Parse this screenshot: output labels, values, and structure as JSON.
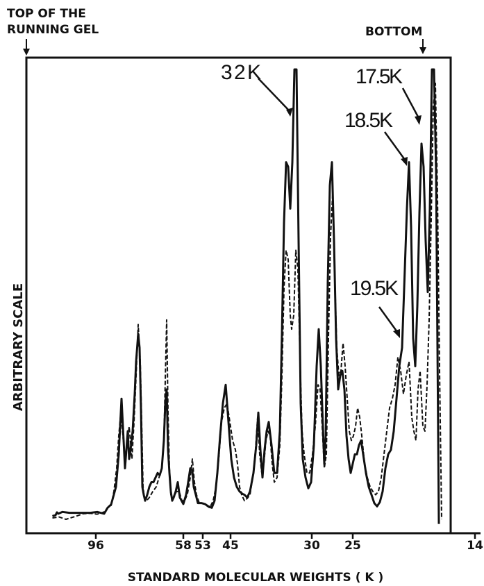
{
  "chart_data": {
    "type": "line",
    "top_label_line1": "TOP OF THE",
    "top_label_line2": "RUNNING GEL",
    "bottom_label": "BOTTOM",
    "xlabel": "STANDARD MOLECULAR WEIGHTS ( K )",
    "ylabel": "ARBITRARY SCALE",
    "x_ticks": [
      "96",
      "58",
      "53",
      "45",
      "30",
      "25",
      "14"
    ],
    "x_scale": "migration distance; ticks at standard molecular weights (K)",
    "grid": false,
    "legend": "none",
    "peak_labels": [
      "32K",
      "17.5K",
      "18.5K",
      "19.5K"
    ],
    "series": [
      {
        "style": "solid",
        "profile": [
          [
            75.5,
            3.7
          ],
          [
            80,
            3.9
          ],
          [
            82,
            4.5
          ],
          [
            84,
            4.2
          ],
          [
            90,
            4.6
          ],
          [
            100,
            4.4
          ],
          [
            130,
            4.4
          ],
          [
            140,
            4.6
          ],
          [
            150,
            4.2
          ],
          [
            155,
            5.5
          ],
          [
            160,
            6.2
          ],
          [
            163,
            7.8
          ],
          [
            167,
            10
          ],
          [
            171,
            17
          ],
          [
            175,
            29
          ],
          [
            178,
            20
          ],
          [
            180,
            14
          ],
          [
            182,
            18
          ],
          [
            184,
            22
          ],
          [
            186,
            16
          ],
          [
            188,
            18
          ],
          [
            191,
            22
          ],
          [
            194,
            30
          ],
          [
            196,
            37
          ],
          [
            199,
            43
          ],
          [
            201,
            40
          ],
          [
            203,
            27
          ],
          [
            205,
            10
          ],
          [
            207,
            8.3
          ],
          [
            209,
            7.0
          ],
          [
            212,
            8.3
          ],
          [
            215,
            10
          ],
          [
            218,
            11
          ],
          [
            221,
            11
          ],
          [
            224,
            12
          ],
          [
            227,
            13
          ],
          [
            230,
            12.5
          ],
          [
            233,
            14
          ],
          [
            236,
            20
          ],
          [
            238,
            28
          ],
          [
            240,
            31
          ],
          [
            242,
            18
          ],
          [
            244,
            13
          ],
          [
            246,
            9
          ],
          [
            248,
            7
          ],
          [
            250,
            7.7
          ],
          [
            253,
            9
          ],
          [
            256,
            11
          ],
          [
            259,
            7.7
          ],
          [
            264,
            6.3
          ],
          [
            268,
            8.3
          ],
          [
            271,
            11
          ],
          [
            274,
            14
          ],
          [
            277,
            13.5
          ],
          [
            279,
            10
          ],
          [
            282,
            8.3
          ],
          [
            285,
            6.5
          ],
          [
            290,
            6.5
          ],
          [
            295,
            6.3
          ],
          [
            300,
            5.8
          ],
          [
            305,
            5.5
          ],
          [
            309,
            7.0
          ],
          [
            313,
            13
          ],
          [
            317,
            21
          ],
          [
            321,
            28
          ],
          [
            325,
            32
          ],
          [
            329,
            24
          ],
          [
            333,
            16
          ],
          [
            337,
            12
          ],
          [
            341,
            10
          ],
          [
            345,
            9
          ],
          [
            349,
            8.5
          ],
          [
            352,
            8.3
          ],
          [
            356,
            7.7
          ],
          [
            360,
            9
          ],
          [
            365,
            13
          ],
          [
            369,
            19
          ],
          [
            372,
            26
          ],
          [
            375,
            18
          ],
          [
            378,
            12
          ],
          [
            381,
            18
          ],
          [
            384,
            22
          ],
          [
            387,
            24
          ],
          [
            391,
            19
          ],
          [
            395,
            13
          ],
          [
            399,
            13
          ],
          [
            403,
            22
          ],
          [
            406,
            43
          ],
          [
            409,
            67
          ],
          [
            412,
            80
          ],
          [
            415,
            79
          ],
          [
            418,
            70
          ],
          [
            421,
            80
          ],
          [
            424,
            100
          ],
          [
            427,
            100
          ],
          [
            430,
            63
          ],
          [
            433,
            28
          ],
          [
            436,
            16
          ],
          [
            440,
            12
          ],
          [
            444,
            9.7
          ],
          [
            448,
            11
          ],
          [
            452,
            19
          ],
          [
            456,
            36
          ],
          [
            459,
            44
          ],
          [
            462,
            36
          ],
          [
            465,
            23
          ],
          [
            467,
            15
          ],
          [
            469,
            21
          ],
          [
            472,
            54
          ],
          [
            475,
            75
          ],
          [
            478,
            80
          ],
          [
            481,
            63
          ],
          [
            484,
            42
          ],
          [
            487,
            31
          ],
          [
            490,
            34
          ],
          [
            493,
            35
          ],
          [
            496,
            31
          ],
          [
            499,
            21
          ],
          [
            502,
            16
          ],
          [
            505,
            13
          ],
          [
            508,
            15
          ],
          [
            511,
            17
          ],
          [
            514,
            17
          ],
          [
            517,
            19
          ],
          [
            520,
            20
          ],
          [
            523,
            17
          ],
          [
            527,
            13
          ],
          [
            531,
            10
          ],
          [
            535,
            8.3
          ],
          [
            539,
            6.5
          ],
          [
            543,
            5.8
          ],
          [
            547,
            6.7
          ],
          [
            551,
            9
          ],
          [
            555,
            14
          ],
          [
            559,
            17
          ],
          [
            563,
            18
          ],
          [
            567,
            22
          ],
          [
            571,
            29
          ],
          [
            575,
            36
          ],
          [
            579,
            40
          ],
          [
            583,
            57
          ],
          [
            586,
            70
          ],
          [
            589,
            80
          ],
          [
            592,
            66
          ],
          [
            595,
            42
          ],
          [
            598,
            36
          ],
          [
            601,
            49
          ],
          [
            604,
            69
          ],
          [
            607,
            84
          ],
          [
            610,
            79
          ],
          [
            613,
            63
          ],
          [
            616,
            52
          ],
          [
            619,
            70
          ],
          [
            622,
            100
          ],
          [
            625,
            100
          ],
          [
            628,
            78
          ],
          [
            630,
            40
          ],
          [
            632,
            2
          ]
        ]
      },
      {
        "style": "dashed",
        "profile": [
          [
            75.5,
            3.3
          ],
          [
            85,
            3.5
          ],
          [
            95,
            3.0
          ],
          [
            110,
            3.7
          ],
          [
            120,
            4.2
          ],
          [
            130,
            4.3
          ],
          [
            140,
            4.1
          ],
          [
            150,
            4.6
          ],
          [
            155,
            5.5
          ],
          [
            160,
            6.0
          ],
          [
            164,
            9
          ],
          [
            168,
            14
          ],
          [
            171,
            21
          ],
          [
            174,
            26
          ],
          [
            177,
            21
          ],
          [
            180,
            16
          ],
          [
            183,
            19
          ],
          [
            186,
            23
          ],
          [
            190,
            16
          ],
          [
            193,
            24
          ],
          [
            196,
            34
          ],
          [
            199,
            45
          ],
          [
            202,
            37
          ],
          [
            204,
            24
          ],
          [
            206,
            10
          ],
          [
            208,
            7.5
          ],
          [
            211,
            7
          ],
          [
            215,
            7.7
          ],
          [
            220,
            9
          ],
          [
            225,
            10
          ],
          [
            229,
            12
          ],
          [
            233,
            14
          ],
          [
            236,
            20
          ],
          [
            238,
            33
          ],
          [
            240,
            46
          ],
          [
            242,
            26
          ],
          [
            244,
            14
          ],
          [
            246,
            8.3
          ],
          [
            250,
            7.5
          ],
          [
            254,
            9
          ],
          [
            258,
            9
          ],
          [
            262,
            7
          ],
          [
            266,
            7
          ],
          [
            270,
            8.5
          ],
          [
            274,
            12
          ],
          [
            277,
            16
          ],
          [
            280,
            11
          ],
          [
            283,
            8.3
          ],
          [
            287,
            6.5
          ],
          [
            292,
            6.5
          ],
          [
            297,
            6
          ],
          [
            302,
            5.5
          ],
          [
            307,
            7
          ],
          [
            311,
            10
          ],
          [
            315,
            16
          ],
          [
            319,
            24
          ],
          [
            323,
            27
          ],
          [
            327,
            28
          ],
          [
            331,
            24
          ],
          [
            335,
            20
          ],
          [
            339,
            18
          ],
          [
            342,
            15
          ],
          [
            345,
            10
          ],
          [
            348,
            8.3
          ],
          [
            352,
            7
          ],
          [
            356,
            7.5
          ],
          [
            360,
            8.3
          ],
          [
            364,
            12
          ],
          [
            368,
            18
          ],
          [
            371,
            25
          ],
          [
            374,
            17
          ],
          [
            377,
            13
          ],
          [
            380,
            15
          ],
          [
            383,
            20
          ],
          [
            386,
            22
          ],
          [
            389,
            21
          ],
          [
            392,
            15
          ],
          [
            395,
            11
          ],
          [
            399,
            12
          ],
          [
            403,
            19
          ],
          [
            406,
            34
          ],
          [
            409,
            53
          ],
          [
            412,
            61
          ],
          [
            415,
            59
          ],
          [
            418,
            47
          ],
          [
            420,
            44
          ],
          [
            423,
            47
          ],
          [
            426,
            61
          ],
          [
            429,
            57
          ],
          [
            432,
            38
          ],
          [
            435,
            22
          ],
          [
            438,
            17
          ],
          [
            442,
            13
          ],
          [
            446,
            13
          ],
          [
            450,
            17
          ],
          [
            454,
            23
          ],
          [
            458,
            32
          ],
          [
            461,
            31
          ],
          [
            464,
            23
          ],
          [
            467,
            14
          ],
          [
            470,
            17
          ],
          [
            473,
            42
          ],
          [
            476,
            64
          ],
          [
            479,
            73
          ],
          [
            482,
            56
          ],
          [
            485,
            40
          ],
          [
            488,
            34
          ],
          [
            491,
            35
          ],
          [
            494,
            41
          ],
          [
            497,
            36
          ],
          [
            500,
            29
          ],
          [
            503,
            22
          ],
          [
            506,
            20
          ],
          [
            509,
            21
          ],
          [
            512,
            23
          ],
          [
            515,
            27
          ],
          [
            518,
            25
          ],
          [
            521,
            21
          ],
          [
            525,
            15
          ],
          [
            529,
            12
          ],
          [
            533,
            10
          ],
          [
            537,
            9
          ],
          [
            541,
            8.3
          ],
          [
            545,
            9
          ],
          [
            549,
            12
          ],
          [
            553,
            17
          ],
          [
            557,
            22
          ],
          [
            561,
            27
          ],
          [
            565,
            29
          ],
          [
            569,
            32
          ],
          [
            573,
            38
          ],
          [
            577,
            35
          ],
          [
            581,
            30
          ],
          [
            585,
            34
          ],
          [
            589,
            37
          ],
          [
            593,
            25
          ],
          [
            596,
            22
          ],
          [
            599,
            20
          ],
          [
            602,
            31
          ],
          [
            605,
            35
          ],
          [
            609,
            23
          ],
          [
            612,
            22
          ],
          [
            615,
            32
          ],
          [
            618,
            46
          ],
          [
            621,
            68
          ],
          [
            624,
            92
          ],
          [
            627,
            97
          ],
          [
            630,
            73
          ],
          [
            633,
            35
          ],
          [
            636,
            3
          ]
        ]
      }
    ]
  }
}
